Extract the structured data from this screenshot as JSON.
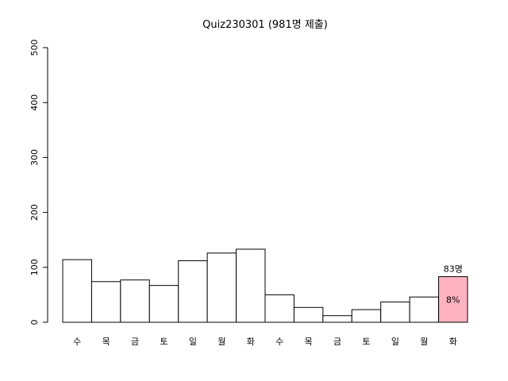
{
  "chart_data": {
    "type": "bar",
    "title": "Quiz230301 (981명 제출)",
    "xlabel": "",
    "ylabel": "",
    "ylim": [
      0,
      500
    ],
    "yticks": [
      0,
      100,
      200,
      300,
      400,
      500
    ],
    "categories": [
      "수",
      "목",
      "금",
      "토",
      "일",
      "월",
      "화",
      "수",
      "목",
      "금",
      "토",
      "일",
      "월",
      "화"
    ],
    "values": [
      114,
      74,
      77,
      67,
      112,
      126,
      133,
      50,
      27,
      12,
      23,
      37,
      46,
      83
    ],
    "bar_fill": "#ffffff",
    "highlight": {
      "index": 13,
      "color": "#ffb3c1",
      "top_label": "83명",
      "inner_label": "8%"
    }
  }
}
